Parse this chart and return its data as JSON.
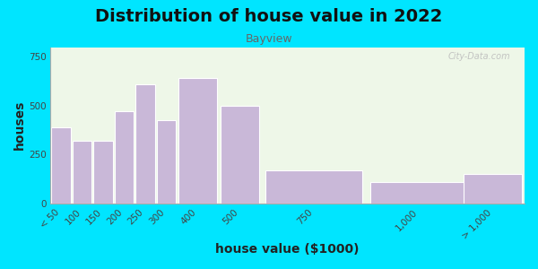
{
  "title": "Distribution of house value in 2022",
  "subtitle": "Bayview",
  "xlabel": "house value ($1000)",
  "ylabel": "houses",
  "categories": [
    "< 50",
    "100",
    "150",
    "200",
    "250",
    "300",
    "400",
    "500",
    "750",
    "1,000",
    "> 1,000"
  ],
  "x_positions": [
    25,
    75,
    125,
    175,
    225,
    275,
    350,
    450,
    625,
    875,
    1050
  ],
  "bar_widths": [
    50,
    50,
    50,
    50,
    50,
    50,
    100,
    100,
    250,
    250,
    150
  ],
  "values": [
    390,
    320,
    320,
    470,
    610,
    425,
    640,
    500,
    170,
    110,
    150
  ],
  "bar_color": "#c9b8d8",
  "bar_edgecolor": "#ffffff",
  "ylim": [
    0,
    800
  ],
  "yticks": [
    0,
    250,
    500,
    750
  ],
  "xlim": [
    0,
    1125
  ],
  "xtick_positions": [
    25,
    75,
    125,
    175,
    225,
    275,
    350,
    450,
    625,
    875,
    1050
  ],
  "bg_outer": "#00e5ff",
  "bg_plot": "#eef7e8",
  "title_fontsize": 14,
  "subtitle_fontsize": 9,
  "label_fontsize": 10,
  "tick_fontsize": 7.5,
  "watermark": "City-Data.com"
}
